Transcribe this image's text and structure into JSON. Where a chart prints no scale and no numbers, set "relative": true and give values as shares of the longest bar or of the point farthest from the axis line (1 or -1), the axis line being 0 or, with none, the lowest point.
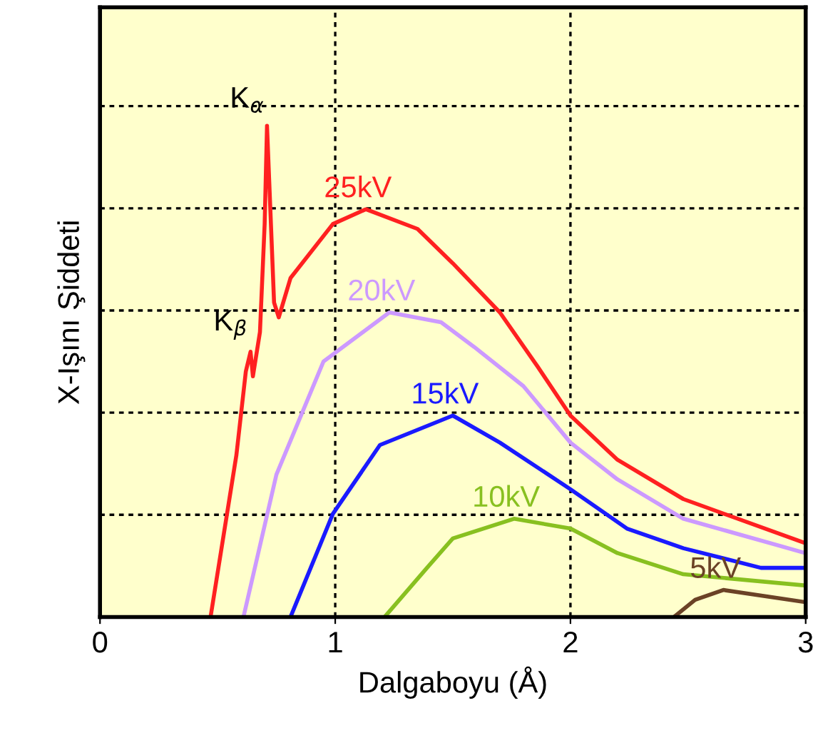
{
  "chart_data": {
    "type": "line",
    "relative": true,
    "xlabel": "Dalgaboyu (Å)",
    "ylabel": "X-Işını Şiddeti",
    "xlim": [
      0,
      3
    ],
    "xticks": [
      0,
      1,
      2,
      3
    ],
    "grid": true,
    "legend": false,
    "series": [
      {
        "name": "25kV",
        "color": "#ff2020",
        "x": [
          0.47,
          0.58,
          0.62,
          0.64,
          0.65,
          0.68,
          0.7,
          0.71,
          0.74,
          0.76,
          0.81,
          0.99,
          1.13,
          1.35,
          1.5,
          1.7,
          1.86,
          2.0,
          2.2,
          2.48,
          3.0
        ],
        "values": [
          0,
          0.33,
          0.5,
          0.54,
          0.49,
          0.58,
          0.8,
          1.0,
          0.64,
          0.61,
          0.69,
          0.8,
          0.83,
          0.79,
          0.72,
          0.62,
          0.51,
          0.41,
          0.32,
          0.24,
          0.15
        ]
      },
      {
        "name": "20kV",
        "color": "#cc99ff",
        "x": [
          0.61,
          0.75,
          0.95,
          1.23,
          1.45,
          1.59,
          1.8,
          2.0,
          2.2,
          2.48,
          3.0
        ],
        "values": [
          0,
          0.29,
          0.52,
          0.62,
          0.6,
          0.55,
          0.47,
          0.355,
          0.28,
          0.2,
          0.13
        ]
      },
      {
        "name": "15kV",
        "color": "#1a1aff",
        "x": [
          0.81,
          0.99,
          1.19,
          1.5,
          1.7,
          2.0,
          2.24,
          2.48,
          2.81,
          3.0
        ],
        "values": [
          0,
          0.21,
          0.35,
          0.41,
          0.355,
          0.26,
          0.18,
          0.14,
          0.1,
          0.1
        ]
      },
      {
        "name": "10kV",
        "color": "#88c020",
        "x": [
          1.21,
          1.39,
          1.5,
          1.76,
          2.0,
          2.2,
          2.48,
          3.0
        ],
        "values": [
          0,
          0.1,
          0.16,
          0.2,
          0.18,
          0.13,
          0.087,
          0.064
        ]
      },
      {
        "name": "5kV",
        "color": "#6b4226",
        "x": [
          2.44,
          2.53,
          2.65,
          3.0
        ],
        "values": [
          0,
          0.035,
          0.055,
          0.03
        ]
      }
    ],
    "annotations": [
      {
        "text": "K$_{α}$",
        "x": 0.71,
        "y": 1.0
      },
      {
        "text": "K$_{β}$",
        "x": 0.64,
        "y": 0.54
      }
    ]
  }
}
